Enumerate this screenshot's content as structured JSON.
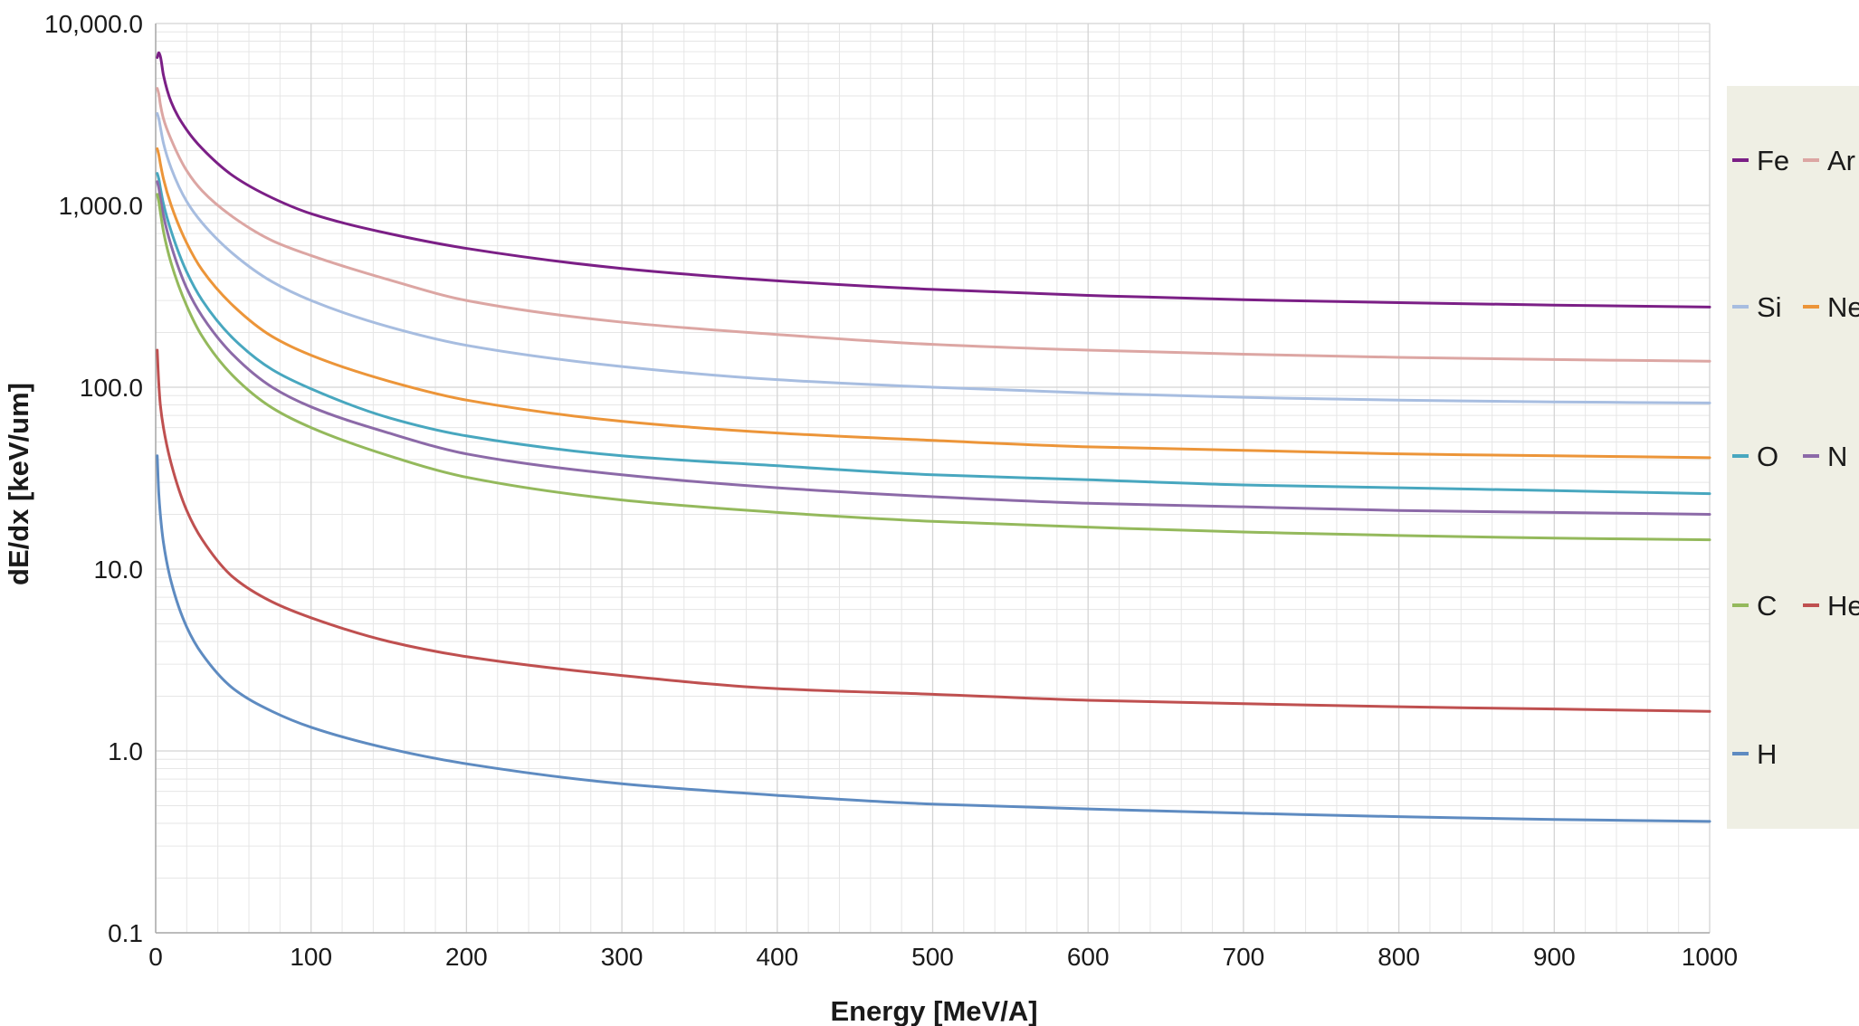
{
  "chart_data": {
    "type": "line",
    "xlabel": "Energy [MeV/A]",
    "ylabel": "dE/dx [keV/um]",
    "x_scale": "linear",
    "y_scale": "log",
    "xlim": [
      0,
      1000
    ],
    "ylim": [
      0.1,
      10000
    ],
    "x_ticks": [
      0,
      100,
      200,
      300,
      400,
      500,
      600,
      700,
      800,
      900,
      1000
    ],
    "x_tick_labels": [
      "0",
      "100",
      "200",
      "300",
      "400",
      "500",
      "600",
      "700",
      "800",
      "900",
      "1000"
    ],
    "y_ticks": [
      0.1,
      1,
      10,
      100,
      1000,
      10000
    ],
    "y_tick_labels": [
      "0.1",
      "1.0",
      "10.0",
      "100.0",
      "1,000.0",
      "10,000.0"
    ],
    "grid": true,
    "legend_position": "right",
    "x": [
      1,
      2,
      3,
      5,
      10,
      20,
      30,
      50,
      75,
      100,
      150,
      200,
      300,
      400,
      500,
      600,
      700,
      800,
      900,
      1000
    ],
    "series": [
      {
        "name": "Fe",
        "color": "#7b1f86",
        "values": [
          6500,
          6900,
          6600,
          5200,
          3700,
          2600,
          2050,
          1450,
          1100,
          900,
          700,
          580,
          450,
          385,
          345,
          320,
          303,
          292,
          283,
          276
        ]
      },
      {
        "name": "Ar",
        "color": "#dca6a3",
        "values": [
          4400,
          4100,
          3600,
          3000,
          2300,
          1550,
          1200,
          860,
          640,
          530,
          390,
          300,
          228,
          195,
          172,
          160,
          152,
          146,
          142,
          139
        ]
      },
      {
        "name": "Si",
        "color": "#a7bde0",
        "values": [
          3200,
          3000,
          2700,
          2200,
          1600,
          1050,
          800,
          540,
          380,
          300,
          215,
          170,
          130,
          110,
          100,
          93,
          88,
          85,
          83,
          82
        ]
      },
      {
        "name": "Ne",
        "color": "#ec9539",
        "values": [
          2050,
          1900,
          1700,
          1400,
          1000,
          620,
          440,
          280,
          190,
          150,
          108,
          85,
          65,
          56,
          51,
          47,
          45,
          43,
          42,
          41
        ]
      },
      {
        "name": "O",
        "color": "#48a7bf",
        "values": [
          1500,
          1400,
          1250,
          1020,
          720,
          430,
          300,
          185,
          125,
          98,
          68,
          54,
          42,
          37,
          33,
          31,
          29,
          28,
          27,
          26
        ]
      },
      {
        "name": "N",
        "color": "#8c6aa8",
        "values": [
          1350,
          1250,
          1100,
          880,
          600,
          350,
          245,
          150,
          100,
          78,
          56,
          43,
          33,
          28,
          25,
          23,
          22,
          21,
          20.5,
          20
        ]
      },
      {
        "name": "C",
        "color": "#94b95c",
        "values": [
          1150,
          1050,
          920,
          720,
          480,
          280,
          190,
          115,
          77,
          60,
          42,
          32,
          24,
          20.5,
          18.3,
          17,
          16,
          15.3,
          14.8,
          14.5
        ]
      },
      {
        "name": "He",
        "color": "#bf5050",
        "values": [
          160,
          105,
          80,
          60,
          38,
          21,
          14.5,
          9,
          6.6,
          5.4,
          4,
          3.3,
          2.6,
          2.2,
          2.05,
          1.9,
          1.82,
          1.75,
          1.7,
          1.65
        ]
      },
      {
        "name": "H",
        "color": "#5e8bc1",
        "values": [
          42,
          26,
          20,
          14,
          8.5,
          4.8,
          3.4,
          2.2,
          1.65,
          1.35,
          1.03,
          0.85,
          0.66,
          0.57,
          0.51,
          0.48,
          0.455,
          0.435,
          0.42,
          0.41
        ]
      }
    ]
  },
  "legend": {
    "rows": [
      {
        "left": "Fe",
        "right": "Ar"
      },
      {
        "left": "Si",
        "right": "Ne"
      },
      {
        "left": "O",
        "right": "N"
      },
      {
        "left": "C",
        "right": "He"
      },
      {
        "left": "H",
        "right": ""
      }
    ]
  },
  "colors": {
    "legend_background": "#efefe4",
    "grid_major": "#d4d4d4",
    "grid_minor": "#e6e6e6",
    "axis": "#aaaaaa"
  }
}
